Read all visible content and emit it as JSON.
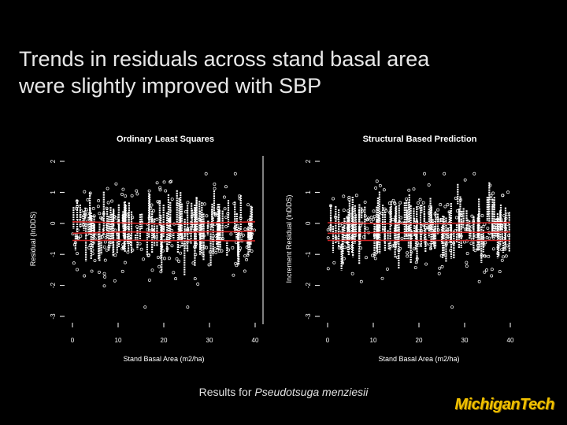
{
  "slide": {
    "title_line1": "Trends in residuals across stand basal area",
    "title_line2": "were slightly improved with SBP",
    "caption_prefix": "Results for ",
    "caption_species": "Pseudotsuga menziesii",
    "logo_text": "MichiganTech"
  },
  "colors": {
    "background": "#000000",
    "points": "#ffffff",
    "trend": "#cc2222",
    "logo": "#f2c200"
  },
  "chart_data": [
    {
      "type": "scatter",
      "title": "Ordinary Least Squares",
      "xlabel": "Stand Basal Area (m2/ha)",
      "ylabel": "Residual (lnDDS)",
      "xlim": [
        0,
        40
      ],
      "ylim": [
        -3,
        2
      ],
      "xticks": [
        "0",
        "10",
        "20",
        "30",
        "40"
      ],
      "yticks": [
        "-3",
        "-2",
        "-1",
        "0",
        "1",
        "2"
      ],
      "trend_lines": [
        {
          "x": [
            0,
            5,
            10,
            15,
            20,
            25,
            30,
            35,
            40
          ],
          "y": [
            0.05,
            0.04,
            0.02,
            0.0,
            -0.02,
            0.0,
            0.02,
            0.03,
            0.05
          ]
        },
        {
          "x": [
            0,
            5,
            10,
            15,
            20,
            25,
            30,
            35,
            40
          ],
          "y": [
            -0.32,
            -0.3,
            -0.28,
            -0.28,
            -0.3,
            -0.29,
            -0.27,
            -0.27,
            -0.25
          ]
        },
        {
          "x": [
            0,
            5,
            10,
            15,
            20,
            25,
            30,
            35,
            40
          ],
          "y": [
            -0.55,
            -0.55,
            -0.54,
            -0.55,
            -0.56,
            -0.55,
            -0.55,
            -0.56,
            -0.56
          ]
        }
      ]
    },
    {
      "type": "scatter",
      "title": "Structural Based Prediction",
      "xlabel": "Stand Basal Area (m2/ha)",
      "ylabel": "Increment Residual (lnDDS)",
      "xlim": [
        0,
        40
      ],
      "ylim": [
        -3,
        2
      ],
      "xticks": [
        "0",
        "10",
        "20",
        "30",
        "40"
      ],
      "yticks": [
        "-3",
        "-2",
        "-1",
        "0",
        "1",
        "2"
      ],
      "trend_lines": [
        {
          "x": [
            0,
            5,
            10,
            15,
            20,
            25,
            30,
            35,
            40
          ],
          "y": [
            0.02,
            0.01,
            0.0,
            -0.01,
            -0.01,
            0.0,
            0.01,
            0.02,
            0.03
          ]
        },
        {
          "x": [
            0,
            5,
            10,
            15,
            20,
            25,
            30,
            35,
            40
          ],
          "y": [
            -0.32,
            -0.31,
            -0.3,
            -0.3,
            -0.31,
            -0.3,
            -0.29,
            -0.29,
            -0.28
          ]
        },
        {
          "x": [
            0,
            5,
            10,
            15,
            20,
            25,
            30,
            35,
            40
          ],
          "y": [
            -0.55,
            -0.55,
            -0.55,
            -0.55,
            -0.55,
            -0.55,
            -0.55,
            -0.55,
            -0.55
          ]
        }
      ]
    }
  ]
}
